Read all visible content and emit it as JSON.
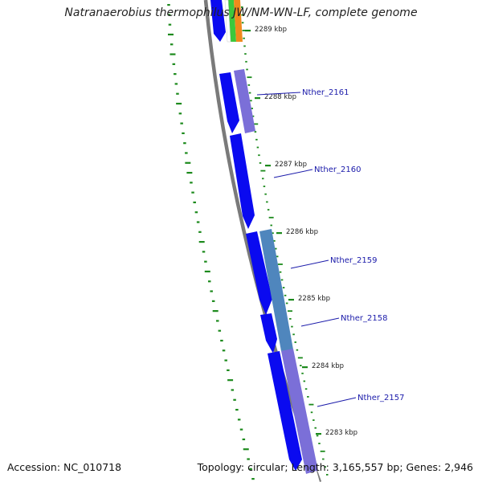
{
  "title": "Natranaerobius thermophilus JW/NM-WN-LF, complete genome",
  "footer": {
    "accession": "Accession: NC_010718",
    "summary": "Topology: circular; Length: 3,165,557 bp; Genes: 2,946"
  },
  "kbp_ticks": [
    "2289 kbp",
    "2288 kbp",
    "2287 kbp",
    "2286 kbp",
    "2285 kbp",
    "2284 kbp",
    "2283 kbp"
  ],
  "gene_labels": [
    "Nther_2161",
    "Nther_2160",
    "Nther_2159",
    "Nther_2158",
    "Nther_2157"
  ],
  "colors": {
    "cds_blue": "#0a0af0",
    "cds_purple": "#7b6fd8",
    "cds_steel": "#4f86bd",
    "gc_green": "#1c8a1c",
    "backbone": "#777777",
    "orange": "#f08a1c",
    "green_feature": "#3cc83c",
    "label_blue": "#1a1aaa"
  }
}
